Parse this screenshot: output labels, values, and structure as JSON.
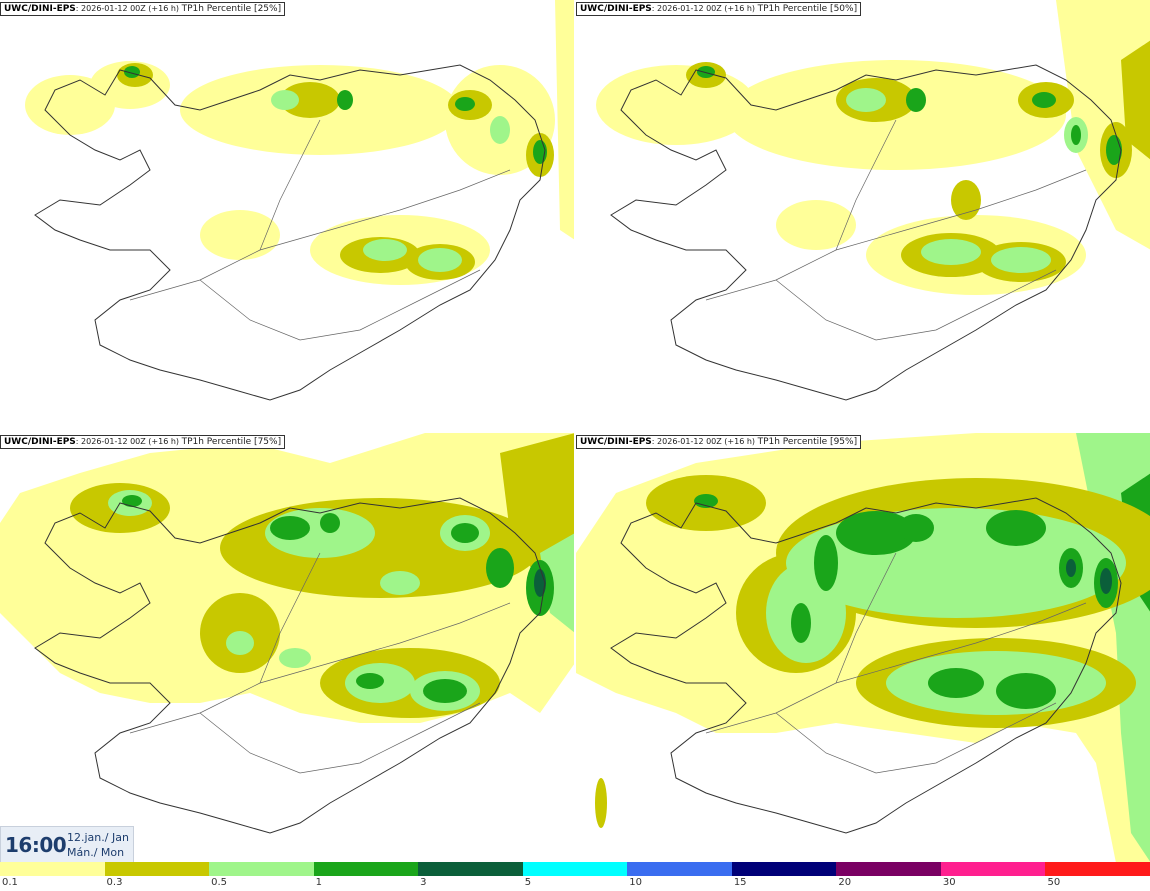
{
  "panels": [
    {
      "model": "UWC/DINI-EPS",
      "run": "2026-01-12 00Z (+16 h)",
      "field": "TP1h Percentile [25%]"
    },
    {
      "model": "UWC/DINI-EPS",
      "run": "2026-01-12 00Z (+16 h)",
      "field": "TP1h Percentile [50%]"
    },
    {
      "model": "UWC/DINI-EPS",
      "run": "2026-01-12 00Z (+16 h)",
      "field": "TP1h Percentile [75%]"
    },
    {
      "model": "UWC/DINI-EPS",
      "run": "2026-01-12 00Z (+16 h)",
      "field": "TP1h Percentile [95%]"
    }
  ],
  "timestamp": {
    "time": "16:00",
    "date_line1": "12.jan./ Jan",
    "date_line2": "Mán./ Mon"
  },
  "legend": {
    "colors": [
      "#ffff99",
      "#c8c800",
      "#9ff58a",
      "#1aa51a",
      "#0b5f3a",
      "#00ffff",
      "#3a6df0",
      "#000078",
      "#7a0063",
      "#ff1f8f",
      "#ff1a1a"
    ],
    "ticks": [
      "0.1",
      "0.3",
      "0.5",
      "1",
      "3",
      "5",
      "10",
      "15",
      "20",
      "30",
      "50"
    ]
  },
  "colors": {
    "c1": "#ffff99",
    "c2": "#c8c800",
    "c3": "#9ff58a",
    "c4": "#1aa51a",
    "c5": "#0b5f3a",
    "coast": "#333333",
    "road": "#666666"
  }
}
